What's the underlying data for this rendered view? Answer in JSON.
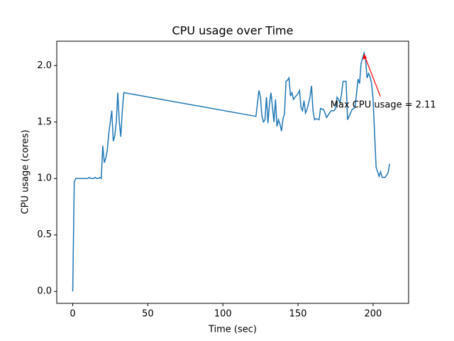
{
  "chart_data": {
    "type": "line",
    "title": "CPU usage over Time",
    "x_label": "Time (sec)",
    "y_label": "CPU usage (cores)",
    "x": [
      0,
      1,
      2,
      3,
      4,
      5,
      6,
      7,
      8,
      9,
      10,
      11,
      12,
      13,
      14,
      15,
      16,
      17,
      18,
      19,
      20,
      21,
      22,
      23,
      24,
      25,
      26,
      27,
      28,
      29,
      30,
      31,
      32,
      33,
      34,
      122,
      124,
      125,
      126,
      127,
      128,
      129,
      130,
      131,
      132,
      133,
      134,
      135,
      136,
      137,
      138,
      139,
      140,
      141,
      142,
      143,
      144,
      145,
      146,
      147,
      148,
      150,
      151,
      152,
      153,
      154,
      155,
      156,
      158,
      159,
      160,
      161,
      162,
      164,
      165,
      167,
      168,
      169,
      171,
      172,
      174,
      175,
      176,
      177,
      178,
      179,
      180,
      182,
      183,
      185,
      186,
      188,
      190,
      191,
      192,
      194,
      195,
      196,
      197,
      198,
      199,
      200,
      202,
      204,
      205,
      206,
      207,
      208,
      210,
      211
    ],
    "series": [
      {
        "name": "CPU usage",
        "color": "#1f77b4",
        "values": [
          0,
          0.97,
          1.0,
          1.0,
          1.0,
          1.0,
          1.0,
          1.0,
          1.0,
          1.0,
          1.0,
          1.01,
          1.0,
          1.0,
          1.0,
          1.01,
          1.0,
          1.0,
          1.01,
          1.0,
          1.29,
          1.14,
          1.18,
          1.25,
          1.4,
          1.5,
          1.6,
          1.33,
          1.38,
          1.5,
          1.76,
          1.5,
          1.37,
          1.6,
          1.76,
          1.55,
          1.78,
          1.72,
          1.55,
          1.5,
          1.52,
          1.72,
          1.49,
          1.66,
          1.76,
          1.63,
          1.5,
          1.7,
          1.46,
          1.52,
          1.48,
          1.42,
          1.53,
          1.57,
          1.86,
          1.87,
          1.89,
          1.73,
          1.76,
          1.7,
          1.72,
          1.75,
          1.78,
          1.63,
          1.6,
          1.69,
          1.58,
          1.61,
          1.72,
          1.82,
          1.6,
          1.52,
          1.53,
          1.52,
          1.62,
          1.61,
          1.58,
          1.54,
          1.58,
          1.6,
          1.6,
          1.62,
          1.72,
          1.7,
          1.67,
          1.75,
          1.86,
          1.86,
          1.52,
          1.58,
          1.61,
          1.63,
          1.88,
          1.84,
          2.02,
          2.11,
          2.05,
          1.89,
          1.93,
          1.9,
          1.84,
          1.7,
          1.1,
          1.02,
          1.06,
          1.01,
          1.01,
          1.01,
          1.05,
          1.13
        ]
      }
    ],
    "annotation": "Max CPU usage = 2.11",
    "annotation_color": "red",
    "xlim": [
      -10.65,
      223.65
    ],
    "xticks": [
      0,
      50,
      100,
      150,
      200
    ],
    "ylim": [
      -0.1055,
      2.2155
    ],
    "yticks": [
      {
        "value": 0,
        "label": "0.0"
      },
      {
        "value": 0.5,
        "label": "0.5"
      },
      {
        "value": 1,
        "label": "1.0"
      },
      {
        "value": 1.5,
        "label": "1.5"
      },
      {
        "value": 2,
        "label": "2.0"
      }
    ]
  }
}
